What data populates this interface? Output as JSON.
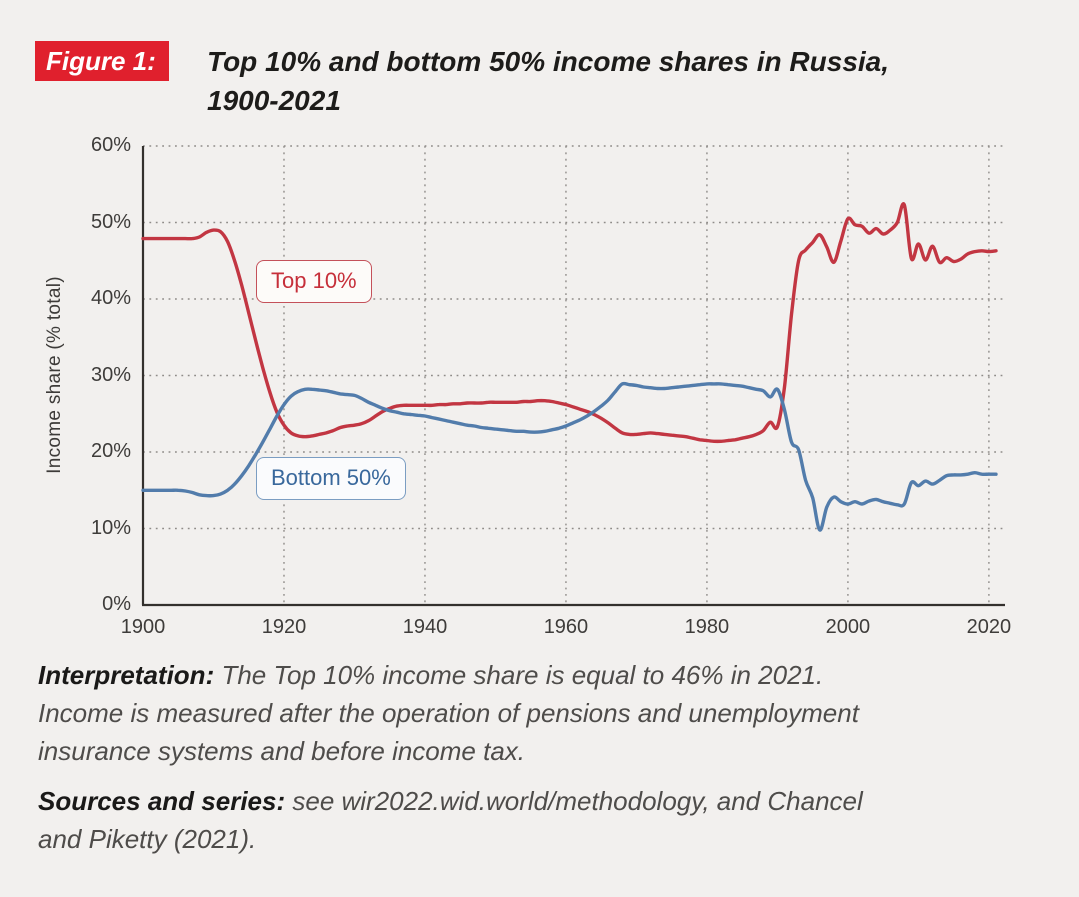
{
  "figure": {
    "label": "Figure 1:",
    "title": "Top 10% and bottom 50% income shares in Russia, 1900-2021",
    "accent_color": "#e0202d"
  },
  "notes": {
    "interpretation_label": "Interpretation:",
    "interpretation_text": "The Top 10% income share is equal to 46% in 2021. Income is measured after the operation of pensions and unemployment insurance systems and before income tax.",
    "sources_label": "Sources and series:",
    "sources_text": "see wir2022.wid.world/methodology, and Chancel and Piketty (2021)."
  },
  "chart_data": {
    "type": "line",
    "title": "Top 10% and bottom 50% income shares in Russia, 1900-2021",
    "xlabel": "",
    "ylabel": "Income share (% total)",
    "xlim": [
      1900,
      2022
    ],
    "ylim": [
      0,
      60
    ],
    "grid": "dotted",
    "legend_position": "inline-labels",
    "x_start_year": 1900,
    "x_ticks": [
      {
        "value": 1900,
        "label": "1900"
      },
      {
        "value": 1920,
        "label": "1920"
      },
      {
        "value": 1940,
        "label": "1940"
      },
      {
        "value": 1960,
        "label": "1960"
      },
      {
        "value": 1980,
        "label": "1980"
      },
      {
        "value": 2000,
        "label": "2000"
      },
      {
        "value": 2020,
        "label": "2020"
      }
    ],
    "y_ticks": [
      {
        "value": 60,
        "label": "60%"
      },
      {
        "value": 50,
        "label": "50%"
      },
      {
        "value": 40,
        "label": "40%"
      },
      {
        "value": 30,
        "label": "30%"
      },
      {
        "value": 20,
        "label": "20%"
      },
      {
        "value": 10,
        "label": "10%"
      },
      {
        "value": 0,
        "label": "0%"
      }
    ],
    "series": [
      {
        "name": "Top 10%",
        "color": "#c23642",
        "values": [
          47.9,
          47.9,
          47.9,
          47.9,
          47.9,
          47.9,
          47.9,
          47.9,
          48.1,
          48.7,
          49.0,
          48.8,
          47.5,
          45.0,
          41.8,
          38.2,
          34.5,
          31.0,
          27.8,
          25.2,
          23.5,
          22.5,
          22.1,
          22.0,
          22.1,
          22.3,
          22.5,
          22.8,
          23.2,
          23.4,
          23.5,
          23.7,
          24.1,
          24.7,
          25.3,
          25.7,
          26.0,
          26.1,
          26.1,
          26.1,
          26.1,
          26.1,
          26.2,
          26.2,
          26.3,
          26.3,
          26.4,
          26.4,
          26.4,
          26.5,
          26.5,
          26.5,
          26.5,
          26.5,
          26.6,
          26.6,
          26.7,
          26.7,
          26.6,
          26.4,
          26.2,
          25.9,
          25.6,
          25.3,
          24.9,
          24.4,
          23.8,
          23.1,
          22.5,
          22.3,
          22.3,
          22.4,
          22.5,
          22.4,
          22.3,
          22.2,
          22.1,
          22.0,
          21.8,
          21.6,
          21.5,
          21.4,
          21.4,
          21.5,
          21.6,
          21.8,
          22.0,
          22.3,
          22.8,
          23.9,
          23.3,
          28.5,
          38.0,
          45.0,
          46.4,
          47.4,
          48.4,
          46.8,
          44.8,
          47.6,
          50.5,
          49.7,
          49.5,
          48.6,
          49.2,
          48.5,
          49.0,
          50.0,
          52.3,
          45.3,
          47.2,
          45.1,
          46.9,
          44.8,
          45.4,
          44.9,
          45.2,
          45.9,
          46.2,
          46.3,
          46.2,
          46.3
        ]
      },
      {
        "name": "Bottom 50%",
        "color": "#527cab",
        "values": [
          15.0,
          15.0,
          15.0,
          15.0,
          15.0,
          15.0,
          14.9,
          14.7,
          14.4,
          14.3,
          14.3,
          14.5,
          15.0,
          15.8,
          16.9,
          18.2,
          19.7,
          21.3,
          23.0,
          24.7,
          26.2,
          27.3,
          27.9,
          28.2,
          28.2,
          28.1,
          28.0,
          27.8,
          27.6,
          27.5,
          27.4,
          27.0,
          26.5,
          26.1,
          25.7,
          25.4,
          25.2,
          25.0,
          24.9,
          24.8,
          24.7,
          24.5,
          24.3,
          24.1,
          23.9,
          23.7,
          23.5,
          23.4,
          23.2,
          23.1,
          23.0,
          22.9,
          22.8,
          22.7,
          22.7,
          22.6,
          22.6,
          22.7,
          22.9,
          23.1,
          23.4,
          23.8,
          24.2,
          24.7,
          25.3,
          26.0,
          26.8,
          27.9,
          28.9,
          28.8,
          28.7,
          28.5,
          28.4,
          28.3,
          28.3,
          28.4,
          28.5,
          28.6,
          28.7,
          28.8,
          28.9,
          28.9,
          28.9,
          28.8,
          28.7,
          28.6,
          28.4,
          28.2,
          28.0,
          27.2,
          28.2,
          25.5,
          21.3,
          20.3,
          16.3,
          14.0,
          9.8,
          12.8,
          14.1,
          13.5,
          13.2,
          13.5,
          13.2,
          13.6,
          13.8,
          13.5,
          13.3,
          13.1,
          13.2,
          16.0,
          15.6,
          16.2,
          15.8,
          16.3,
          16.9,
          17.0,
          17.0,
          17.1,
          17.3,
          17.1,
          17.1,
          17.1
        ]
      }
    ]
  }
}
